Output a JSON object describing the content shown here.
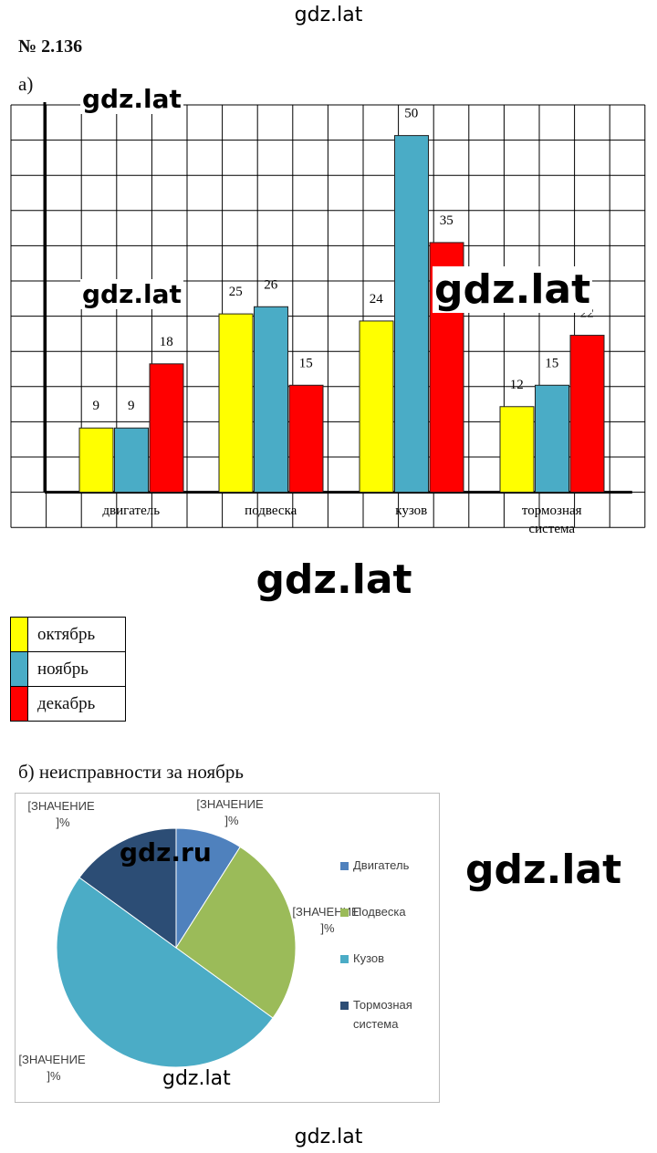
{
  "watermarks": {
    "top": "gdz.lat",
    "bottom": "gdz.lat",
    "chart_a_1": "gdz.lat",
    "chart_a_2": "gdz.lat",
    "chart_a_3": "gdz.lat",
    "below_chart": "gdz.lat",
    "pie_1": "gdz.ru",
    "pie_2": "gdz.lat",
    "pie_3": "gdz.lat"
  },
  "problem_number": "№ 2.136",
  "part_a_label": "а)",
  "part_b_label": "б) неисправности за ноябрь",
  "colors": {
    "october": "#ffff00",
    "november": "#4aacc6",
    "december": "#ff0000",
    "pie_engine": "#4f81bd",
    "pie_suspension": "#9bbb59",
    "pie_body": "#4bacc6",
    "pie_brakes": "#2c4d75"
  },
  "chart_data": [
    {
      "type": "bar",
      "categories": [
        "двигатель",
        "подвеска",
        "кузов",
        "тормозная система"
      ],
      "series": [
        {
          "name": "октябрь",
          "values": [
            9,
            25,
            24,
            12
          ]
        },
        {
          "name": "ноябрь",
          "values": [
            9,
            26,
            50,
            15
          ]
        },
        {
          "name": "декабрь",
          "values": [
            18,
            15,
            35,
            22
          ]
        }
      ],
      "ylim": [
        0,
        55
      ],
      "grid": true,
      "legend": "below"
    },
    {
      "type": "pie",
      "labels": [
        "Двигатель",
        "Подвеска",
        "Кузов",
        "Тормозная система"
      ],
      "values": [
        9,
        26,
        50,
        15
      ],
      "data_label_text": "[ЗНАЧЕНИЕ ]%",
      "legend": "right"
    }
  ]
}
